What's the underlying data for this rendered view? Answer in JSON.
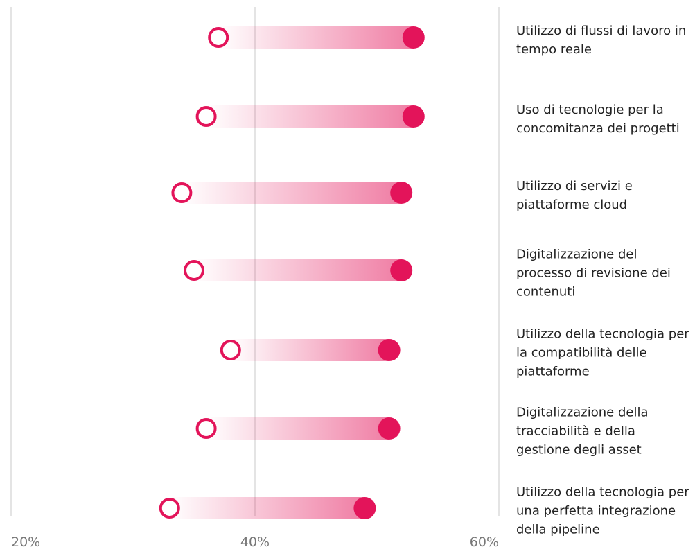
{
  "chart_data": {
    "type": "dumbbell",
    "categories": [
      "Utilizzo di flussi di lavoro in tempo reale",
      "Uso di tecnologie per la concomitanza dei progetti",
      "Utilizzo di servizi e piattaforme cloud",
      "Digitalizzazione del processo di revisione dei contenuti",
      "Utilizzo della tecnologia per la compatibilità delle piattaforme",
      "Digitalizzazione della tracciabilità e della gestione degli asset",
      "Utilizzo della tecnologia per una perfetta integrazione della pipeline"
    ],
    "series": [
      {
        "color": "#e3145a",
        "values": [
          37,
          36,
          34,
          35,
          38,
          36,
          33
        ]
      },
      {
        "color": "#e3145a",
        "values": [
          53,
          53,
          52,
          52,
          51,
          51,
          49
        ]
      }
    ],
    "xlim": [
      20,
      60
    ],
    "xticks": [
      {
        "value": 20,
        "label": "20%"
      },
      {
        "value": 40,
        "label": "40%"
      },
      {
        "value": 60,
        "label": "60%"
      }
    ],
    "grid": true
  }
}
